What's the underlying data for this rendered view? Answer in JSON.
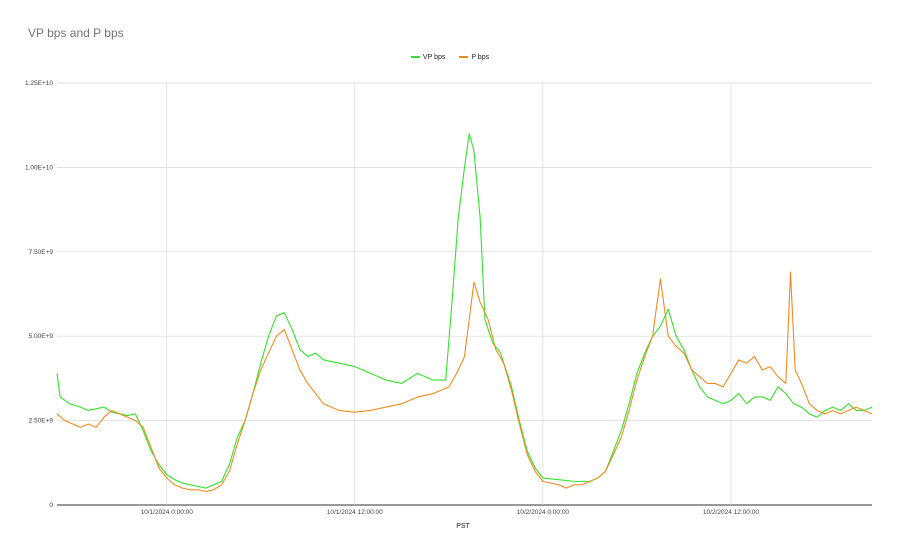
{
  "chart_data": {
    "type": "line",
    "title": "VP bps and P bps",
    "xlabel": "PST",
    "ylabel": "",
    "x_ticks": [
      "10/1/2024 0:00:00",
      "10/1/2024 12:00:00",
      "10/2/2024 0:00:00",
      "10/2/2024 12:00:00"
    ],
    "x_range_hours": [
      -7,
      45
    ],
    "x_tick_hours": [
      0,
      12,
      24,
      36
    ],
    "y_ticks": [
      "0",
      "2.50E+9",
      "5.00E+9",
      "7.50E+9",
      "1.00E+10",
      "1.25E+10"
    ],
    "ylim": [
      0,
      12500000000
    ],
    "grid": true,
    "legend_position": "top",
    "series": [
      {
        "name": "VP bps",
        "color": "#33e32b",
        "points": [
          [
            -7,
            3900000000.0
          ],
          [
            -6.8,
            3200000000.0
          ],
          [
            -6.2,
            3000000000.0
          ],
          [
            -5.5,
            2900000000.0
          ],
          [
            -5,
            2800000000.0
          ],
          [
            -4.5,
            2850000000.0
          ],
          [
            -4,
            2900000000.0
          ],
          [
            -3.5,
            2750000000.0
          ],
          [
            -3,
            2700000000.0
          ],
          [
            -2.5,
            2650000000.0
          ],
          [
            -2,
            2700000000.0
          ],
          [
            -1.5,
            2200000000.0
          ],
          [
            -1,
            1600000000.0
          ],
          [
            -0.5,
            1200000000.0
          ],
          [
            0,
            900000000.0
          ],
          [
            0.5,
            750000000.0
          ],
          [
            1,
            650000000.0
          ],
          [
            1.5,
            600000000.0
          ],
          [
            2,
            550000000.0
          ],
          [
            2.5,
            500000000.0
          ],
          [
            3,
            600000000.0
          ],
          [
            3.5,
            700000000.0
          ],
          [
            4,
            1200000000.0
          ],
          [
            4.5,
            2000000000.0
          ],
          [
            5,
            2500000000.0
          ],
          [
            5.5,
            3300000000.0
          ],
          [
            6,
            4200000000.0
          ],
          [
            6.5,
            5000000000.0
          ],
          [
            7,
            5600000000.0
          ],
          [
            7.5,
            5700000000.0
          ],
          [
            8,
            5200000000.0
          ],
          [
            8.5,
            4600000000.0
          ],
          [
            9,
            4400000000.0
          ],
          [
            9.5,
            4500000000.0
          ],
          [
            10,
            4300000000.0
          ],
          [
            11,
            4200000000.0
          ],
          [
            12,
            4100000000.0
          ],
          [
            13,
            3900000000.0
          ],
          [
            14,
            3700000000.0
          ],
          [
            15,
            3600000000.0
          ],
          [
            16,
            3900000000.0
          ],
          [
            17,
            3700000000.0
          ],
          [
            17.8,
            3700000000.0
          ],
          [
            18.2,
            6000000000.0
          ],
          [
            18.6,
            8500000000.0
          ],
          [
            19,
            10000000000.0
          ],
          [
            19.3,
            11000000000.0
          ],
          [
            19.6,
            10500000000.0
          ],
          [
            20,
            8500000000.0
          ],
          [
            20.3,
            5500000000.0
          ],
          [
            20.8,
            4800000000.0
          ],
          [
            21.3,
            4500000000.0
          ],
          [
            22,
            3500000000.0
          ],
          [
            22.5,
            2500000000.0
          ],
          [
            23,
            1600000000.0
          ],
          [
            23.5,
            1100000000.0
          ],
          [
            24,
            800000000.0
          ],
          [
            25,
            750000000.0
          ],
          [
            26,
            700000000.0
          ],
          [
            27,
            700000000.0
          ],
          [
            27.5,
            800000000.0
          ],
          [
            28,
            1000000000.0
          ],
          [
            28.5,
            1600000000.0
          ],
          [
            29,
            2200000000.0
          ],
          [
            29.5,
            3000000000.0
          ],
          [
            30,
            3900000000.0
          ],
          [
            30.5,
            4500000000.0
          ],
          [
            31,
            5000000000.0
          ],
          [
            31.5,
            5300000000.0
          ],
          [
            32,
            5800000000.0
          ],
          [
            32.5,
            5000000000.0
          ],
          [
            33,
            4600000000.0
          ],
          [
            33.5,
            4000000000.0
          ],
          [
            34,
            3500000000.0
          ],
          [
            34.5,
            3200000000.0
          ],
          [
            35,
            3100000000.0
          ],
          [
            35.5,
            3000000000.0
          ],
          [
            36,
            3100000000.0
          ],
          [
            36.5,
            3300000000.0
          ],
          [
            37,
            3000000000.0
          ],
          [
            37.5,
            3200000000.0
          ],
          [
            38,
            3200000000.0
          ],
          [
            38.5,
            3100000000.0
          ],
          [
            39,
            3500000000.0
          ],
          [
            39.5,
            3300000000.0
          ],
          [
            40,
            3000000000.0
          ],
          [
            40.5,
            2900000000.0
          ],
          [
            41,
            2700000000.0
          ],
          [
            41.5,
            2600000000.0
          ],
          [
            42,
            2800000000.0
          ],
          [
            42.5,
            2900000000.0
          ],
          [
            43,
            2800000000.0
          ],
          [
            43.5,
            3000000000.0
          ],
          [
            44,
            2800000000.0
          ],
          [
            44.5,
            2800000000.0
          ],
          [
            45,
            2900000000.0
          ]
        ]
      },
      {
        "name": "P bps",
        "color": "#f28b1f",
        "points": [
          [
            -7,
            2700000000.0
          ],
          [
            -6.5,
            2500000000.0
          ],
          [
            -6,
            2400000000.0
          ],
          [
            -5.5,
            2300000000.0
          ],
          [
            -5,
            2400000000.0
          ],
          [
            -4.5,
            2300000000.0
          ],
          [
            -4,
            2600000000.0
          ],
          [
            -3.5,
            2800000000.0
          ],
          [
            -3,
            2700000000.0
          ],
          [
            -2.5,
            2600000000.0
          ],
          [
            -2,
            2500000000.0
          ],
          [
            -1.5,
            2300000000.0
          ],
          [
            -1,
            1700000000.0
          ],
          [
            -0.5,
            1100000000.0
          ],
          [
            0,
            800000000.0
          ],
          [
            0.5,
            600000000.0
          ],
          [
            1,
            500000000.0
          ],
          [
            1.5,
            450000000.0
          ],
          [
            2,
            450000000.0
          ],
          [
            2.5,
            400000000.0
          ],
          [
            3,
            450000000.0
          ],
          [
            3.5,
            600000000.0
          ],
          [
            4,
            1000000000.0
          ],
          [
            4.5,
            1800000000.0
          ],
          [
            5,
            2500000000.0
          ],
          [
            5.5,
            3300000000.0
          ],
          [
            6,
            4000000000.0
          ],
          [
            6.5,
            4500000000.0
          ],
          [
            7,
            5000000000.0
          ],
          [
            7.5,
            5200000000.0
          ],
          [
            8,
            4600000000.0
          ],
          [
            8.5,
            4000000000.0
          ],
          [
            9,
            3600000000.0
          ],
          [
            9.5,
            3300000000.0
          ],
          [
            10,
            3000000000.0
          ],
          [
            11,
            2800000000.0
          ],
          [
            12,
            2750000000.0
          ],
          [
            13,
            2800000000.0
          ],
          [
            14,
            2900000000.0
          ],
          [
            15,
            3000000000.0
          ],
          [
            16,
            3200000000.0
          ],
          [
            17,
            3300000000.0
          ],
          [
            18,
            3500000000.0
          ],
          [
            18.5,
            3900000000.0
          ],
          [
            19,
            4400000000.0
          ],
          [
            19.3,
            5500000000.0
          ],
          [
            19.6,
            6600000000.0
          ],
          [
            20,
            6000000000.0
          ],
          [
            20.5,
            5500000000.0
          ],
          [
            21,
            4600000000.0
          ],
          [
            21.5,
            4200000000.0
          ],
          [
            22,
            3400000000.0
          ],
          [
            22.5,
            2400000000.0
          ],
          [
            23,
            1500000000.0
          ],
          [
            23.5,
            1000000000.0
          ],
          [
            24,
            700000000.0
          ],
          [
            25,
            600000000.0
          ],
          [
            25.5,
            500000000.0
          ],
          [
            26,
            600000000.0
          ],
          [
            26.5,
            600000000.0
          ],
          [
            27,
            700000000.0
          ],
          [
            27.5,
            800000000.0
          ],
          [
            28,
            1000000000.0
          ],
          [
            28.5,
            1500000000.0
          ],
          [
            29,
            2000000000.0
          ],
          [
            29.5,
            2800000000.0
          ],
          [
            30,
            3700000000.0
          ],
          [
            30.5,
            4400000000.0
          ],
          [
            31,
            5000000000.0
          ],
          [
            31.5,
            6700000000.0
          ],
          [
            32,
            5000000000.0
          ],
          [
            32.5,
            4700000000.0
          ],
          [
            33,
            4500000000.0
          ],
          [
            33.5,
            4000000000.0
          ],
          [
            34,
            3800000000.0
          ],
          [
            34.5,
            3600000000.0
          ],
          [
            35,
            3600000000.0
          ],
          [
            35.5,
            3500000000.0
          ],
          [
            36,
            3900000000.0
          ],
          [
            36.5,
            4300000000.0
          ],
          [
            37,
            4200000000.0
          ],
          [
            37.5,
            4400000000.0
          ],
          [
            38,
            4000000000.0
          ],
          [
            38.5,
            4100000000.0
          ],
          [
            39,
            3800000000.0
          ],
          [
            39.5,
            3600000000.0
          ],
          [
            39.8,
            6900000000.0
          ],
          [
            40.1,
            4000000000.0
          ],
          [
            40.5,
            3600000000.0
          ],
          [
            41,
            3000000000.0
          ],
          [
            41.5,
            2800000000.0
          ],
          [
            42,
            2700000000.0
          ],
          [
            42.5,
            2800000000.0
          ],
          [
            43,
            2700000000.0
          ],
          [
            43.5,
            2800000000.0
          ],
          [
            44,
            2900000000.0
          ],
          [
            44.5,
            2800000000.0
          ],
          [
            45,
            2700000000.0
          ]
        ]
      }
    ]
  }
}
